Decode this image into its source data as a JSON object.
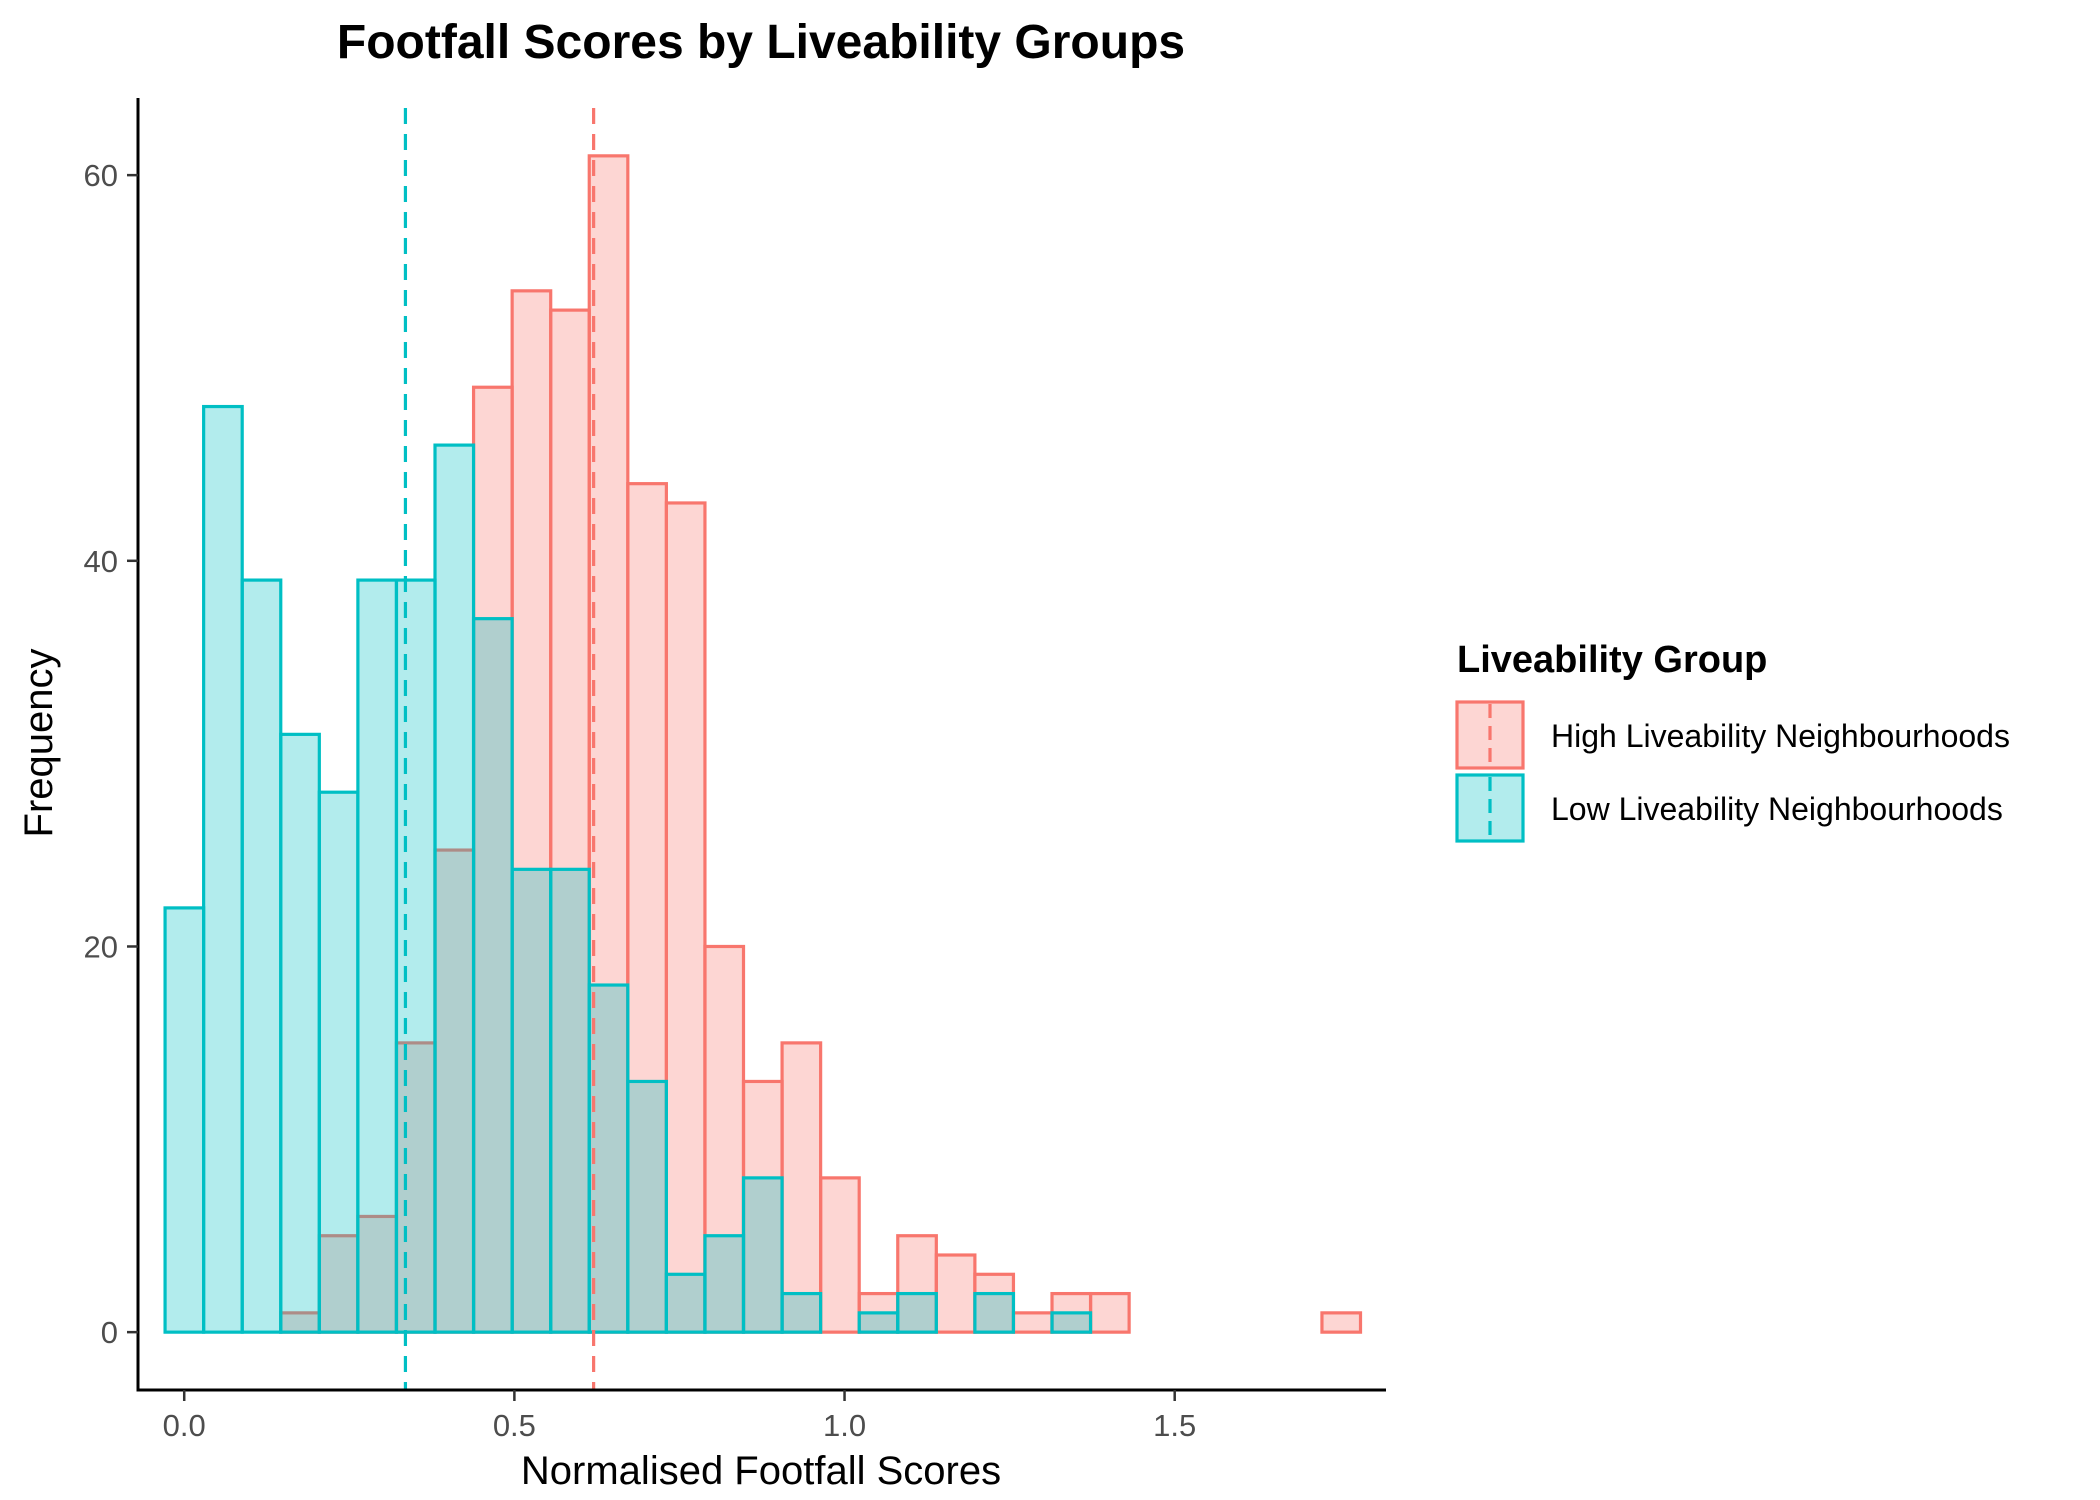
{
  "chart_data": {
    "type": "histogram",
    "title": "Footfall Scores by Liveability Groups",
    "xlabel": "Normalised Footfall Scores",
    "ylabel": "Frequency",
    "xlim": [
      -0.07,
      1.82
    ],
    "ylim": [
      -3,
      64
    ],
    "x_ticks": [
      0.0,
      0.5,
      1.0,
      1.5
    ],
    "x_tick_labels": [
      "0.0",
      "0.5",
      "1.0",
      "1.5"
    ],
    "y_ticks": [
      0,
      20,
      40,
      60
    ],
    "y_tick_labels": [
      "0",
      "20",
      "40",
      "60"
    ],
    "grid": false,
    "legend": {
      "title": "Liveability Group",
      "position": "right"
    },
    "bin_start": -0.029,
    "bin_width": 0.0584,
    "series": [
      {
        "name": "High Liveability Neighbourhoods",
        "color": "#F8766D",
        "fill": "#F8766D",
        "mean": 0.62,
        "counts": [
          0,
          0,
          0,
          1,
          5,
          6,
          15,
          25,
          49,
          54,
          53,
          61,
          44,
          43,
          20,
          13,
          15,
          8,
          2,
          5,
          4,
          3,
          1,
          2,
          2,
          0,
          0,
          0,
          0,
          0,
          1
        ]
      },
      {
        "name": "Low Liveability Neighbourhoods",
        "color": "#00BFC4",
        "fill": "#00BFC4",
        "mean": 0.335,
        "counts": [
          22,
          48,
          39,
          31,
          28,
          39,
          39,
          46,
          37,
          24,
          24,
          18,
          13,
          3,
          5,
          8,
          2,
          0,
          1,
          2,
          0,
          2,
          0,
          1,
          0,
          0,
          0,
          0,
          0,
          0,
          0
        ]
      }
    ]
  }
}
